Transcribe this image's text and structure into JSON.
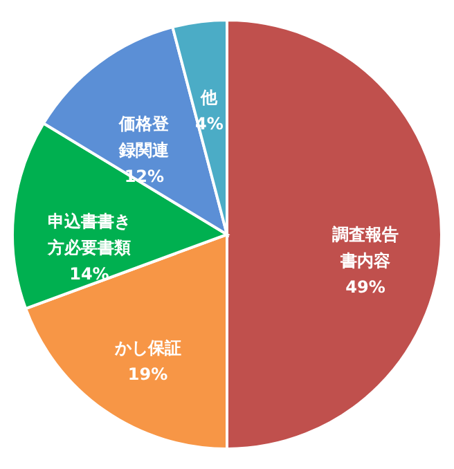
{
  "chart_data": {
    "type": "pie",
    "categories": [
      "調査報告書内容",
      "かし保証",
      "申込書書き方必要書類",
      "価格登録関連",
      "他"
    ],
    "value_labels": [
      "49%",
      "19%",
      "14%",
      "12%",
      "4%"
    ],
    "values": [
      49,
      19,
      14,
      12,
      4
    ],
    "colors": [
      "#c0504d",
      "#f79646",
      "#00b050",
      "#5b8fd6",
      "#4bacc6"
    ],
    "legend": false
  }
}
